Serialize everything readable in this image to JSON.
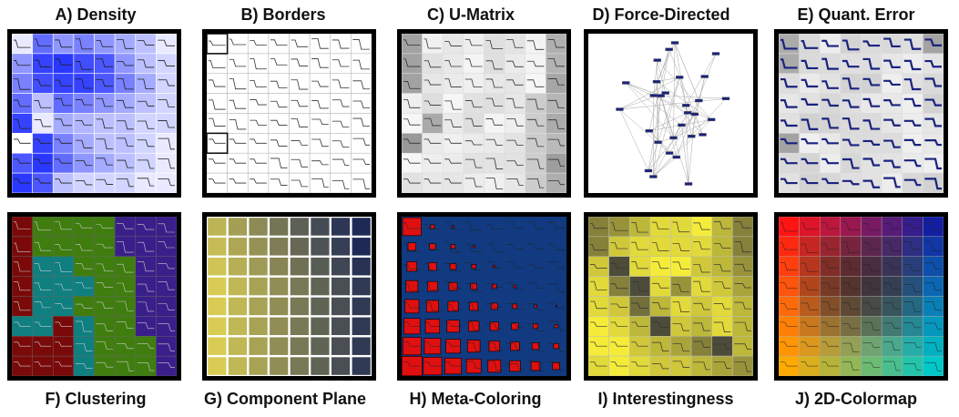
{
  "panels": [
    {
      "id": "A",
      "title": "A) Density",
      "kind": "density"
    },
    {
      "id": "B",
      "title": "B) Borders",
      "kind": "borders"
    },
    {
      "id": "C",
      "title": "C) U-Matrix",
      "kind": "umatrix"
    },
    {
      "id": "D",
      "title": "D) Force-Directed",
      "kind": "force"
    },
    {
      "id": "E",
      "title": "E) Quant. Error",
      "kind": "quant"
    },
    {
      "id": "F",
      "title": "F) Clustering",
      "kind": "cluster"
    },
    {
      "id": "G",
      "title": "G) Component Plane",
      "kind": "component"
    },
    {
      "id": "H",
      "title": "H) Meta-Coloring",
      "kind": "meta"
    },
    {
      "id": "I",
      "title": "I) Interestingness",
      "kind": "interest"
    },
    {
      "id": "J",
      "title": "J) 2D-Colormap",
      "kind": "colormap"
    }
  ],
  "grid": {
    "rows": 8,
    "cols": 8
  },
  "colors": {
    "density_dark": "#1f2dff",
    "cluster": [
      "#7a0a0a",
      "#0f7f80",
      "#3f7d0f",
      "#3a1f8a"
    ],
    "component_light": "#d8cc55",
    "component_dark": "#1e2a55",
    "meta_red": "#e01010",
    "meta_blue": "#113a80",
    "interest_yellow": "#f5ec3a",
    "interest_gray": "#3a3a3a"
  }
}
